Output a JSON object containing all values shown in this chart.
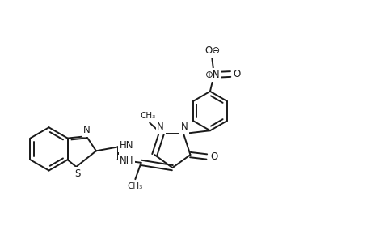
{
  "bg_color": "#ffffff",
  "line_color": "#1a1a1a",
  "line_width": 1.4,
  "font_size": 8.5,
  "fig_width": 4.6,
  "fig_height": 3.0,
  "dpi": 100,
  "xlim": [
    0,
    9.5
  ],
  "ylim": [
    0,
    6
  ]
}
